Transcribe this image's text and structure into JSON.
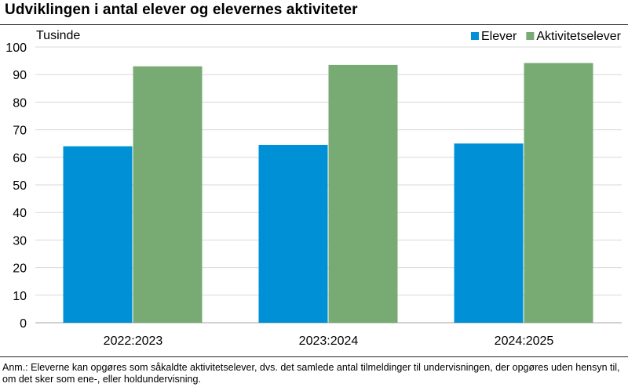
{
  "chart_data": {
    "type": "bar",
    "title": "Udviklingen i antal elever og elevernes aktiviteter",
    "ylabel": "Tusinde",
    "xlabel": "",
    "categories": [
      "2022:2023",
      "2023:2024",
      "2024:2025"
    ],
    "series": [
      {
        "name": "Elever",
        "values": [
          64,
          64.5,
          65
        ],
        "color": "#0090d6"
      },
      {
        "name": "Aktivitetselever",
        "values": [
          93,
          93.5,
          94.2
        ],
        "color": "#77ab73"
      }
    ],
    "ylim": [
      0,
      100
    ],
    "yticks": [
      0,
      10,
      20,
      30,
      40,
      50,
      60,
      70,
      80,
      90,
      100
    ],
    "grid": true,
    "legend_position": "top-right"
  },
  "note": "Anm.: Eleverne kan opgøres som såkaldte aktivitetselever, dvs. det samlede antal tilmeldinger til undervisningen, der opgøres uden hensyn til, om det sker som ene-, eller holdundervisning.",
  "colors": {
    "gridline": "#d9d9d9",
    "axis": "#a6a6a6"
  }
}
